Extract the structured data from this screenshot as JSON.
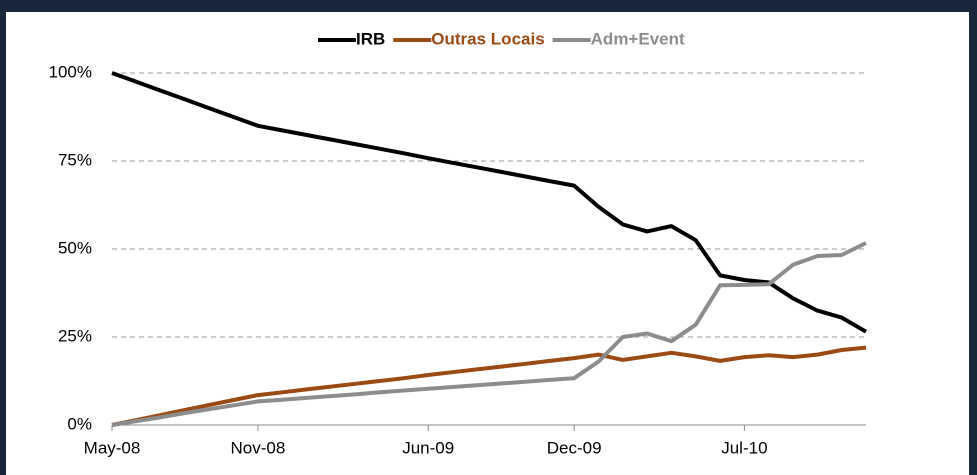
{
  "chart_data": {
    "type": "line",
    "categories": [
      "May-08",
      null,
      null,
      null,
      null,
      null,
      "Nov-08",
      null,
      null,
      null,
      null,
      null,
      null,
      "Jun-09",
      null,
      null,
      null,
      null,
      null,
      "Dec-09",
      null,
      null,
      null,
      null,
      null,
      null,
      "Jul-10",
      null,
      null,
      null,
      null,
      null
    ],
    "series": [
      {
        "name": "IRB",
        "color": "#000000",
        "values": [
          100,
          97.5,
          95,
          92.5,
          90,
          87.5,
          85,
          83.7,
          82.4,
          81.1,
          79.8,
          78.5,
          77.2,
          75.8,
          74.5,
          73.2,
          71.9,
          70.6,
          69.3,
          68,
          62,
          57,
          55,
          56.5,
          52.5,
          42.5,
          41.2,
          40.5,
          36,
          32.5,
          30.5,
          26.5
        ]
      },
      {
        "name": "Outras Locais",
        "color": "#9c4a14",
        "values": [
          0,
          1.4,
          2.8,
          4.3,
          5.7,
          7.1,
          8.5,
          9.3,
          10.1,
          10.9,
          11.7,
          12.5,
          13.3,
          14.2,
          15,
          15.8,
          16.6,
          17.4,
          18.2,
          19,
          20,
          18.5,
          19.5,
          20.5,
          19.5,
          18.2,
          19.3,
          19.8,
          19.3,
          20,
          21.3,
          22
        ]
      },
      {
        "name": "Adm+Event",
        "color": "#8c8c8c",
        "values": [
          0,
          1.1,
          2.2,
          3.4,
          4.5,
          5.6,
          6.7,
          7.2,
          7.7,
          8.2,
          8.7,
          9.3,
          9.8,
          10.3,
          10.8,
          11.3,
          11.8,
          12.3,
          12.8,
          13.3,
          18,
          25,
          26,
          23.8,
          28.5,
          39.7,
          39.8,
          40,
          45.5,
          48,
          48.3,
          51.7
        ]
      }
    ],
    "ylim": [
      0,
      100
    ],
    "yticks": [
      {
        "value": 0,
        "label": "0%"
      },
      {
        "value": 25,
        "label": "25%"
      },
      {
        "value": 50,
        "label": "50%"
      },
      {
        "value": 75,
        "label": "75%"
      },
      {
        "value": 100,
        "label": "100%"
      }
    ],
    "grid": true,
    "legend": "top"
  }
}
